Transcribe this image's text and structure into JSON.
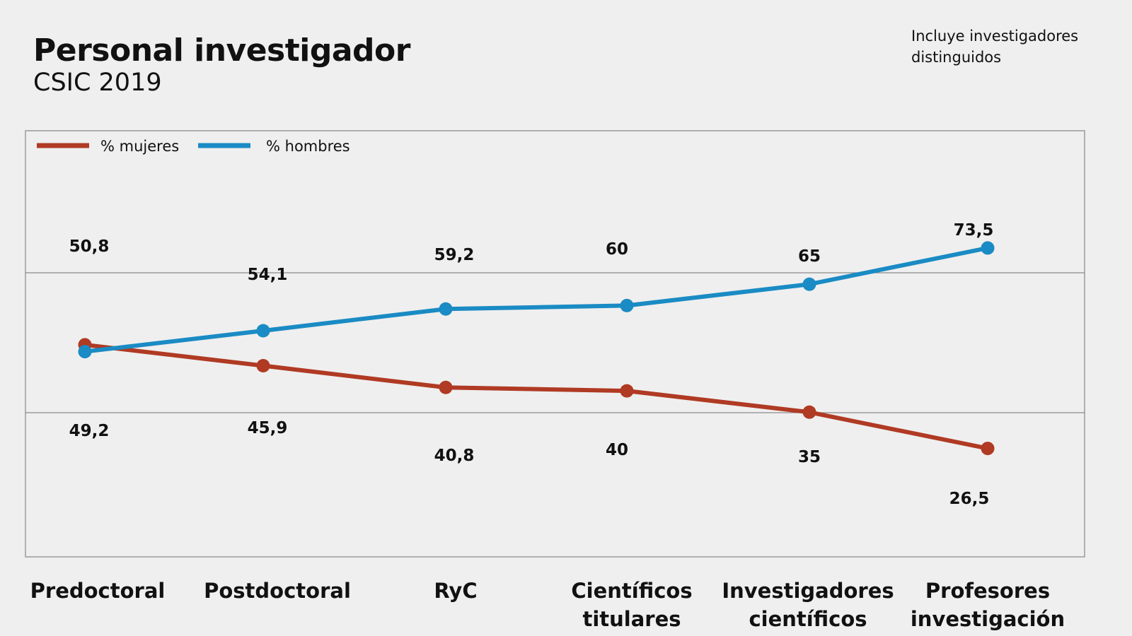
{
  "header": {
    "title": "Personal investigador",
    "subtitle": "CSIC 2019",
    "note": "Incluye investigadores distinguidos"
  },
  "colors": {
    "women": "#b03a23",
    "men": "#1a8bc4",
    "frame": "#9a9a9a",
    "grid": "#8a8a8a"
  },
  "chart_data": {
    "type": "line",
    "categories": [
      [
        "Predoctoral"
      ],
      [
        "Postdoctoral"
      ],
      [
        "RyC"
      ],
      [
        "Científicos",
        "titulares"
      ],
      [
        "Investigadores",
        "científicos"
      ],
      [
        "Profesores",
        "investigación"
      ]
    ],
    "series": [
      {
        "name": "% mujeres",
        "color": "#b03a23",
        "values": [
          50.8,
          45.9,
          40.8,
          40,
          35,
          26.5
        ],
        "labels": [
          "50,8",
          "45,9",
          "40,8",
          "40",
          "35",
          "26,5"
        ]
      },
      {
        "name": "% hombres",
        "color": "#1a8bc4",
        "values": [
          49.2,
          54.1,
          59.2,
          60,
          65,
          73.5
        ],
        "labels": [
          "49,2",
          "54,1",
          "59,2",
          "60",
          "65",
          "73,5"
        ]
      }
    ],
    "ylim": [
      0,
      100
    ],
    "grid": true,
    "legend": "top-left"
  }
}
